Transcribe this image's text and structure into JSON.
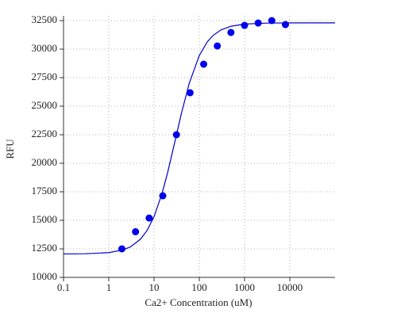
{
  "chart_data": {
    "type": "scatter",
    "x_label": "Ca2+ Concentration (uM)",
    "y_label": "RFU",
    "xscale": "log",
    "grid": true,
    "xlim": [
      0.1,
      100000
    ],
    "xticks": [
      0.1,
      1,
      10,
      100,
      1000,
      10000
    ],
    "ylim": [
      10000,
      32500
    ],
    "yticks": [
      10000,
      12500,
      15000,
      17500,
      20000,
      22500,
      25000,
      27500,
      30000,
      32500
    ],
    "series": [
      {
        "kind": "points",
        "color": "#0000ee",
        "x": [
          1.95,
          3.9,
          7.8,
          15.6,
          31.25,
          62.5,
          125,
          250,
          500,
          1000,
          2000,
          4000,
          8000
        ],
        "values": [
          12500,
          14000,
          15200,
          17150,
          22500,
          26180,
          28680,
          30280,
          31460,
          32080,
          32290,
          32500,
          32150
        ]
      },
      {
        "kind": "line",
        "color": "#0000cc",
        "x": [
          0.1,
          0.3,
          1,
          2,
          3,
          5,
          7,
          10,
          15,
          20,
          30,
          40,
          60,
          100,
          150,
          200,
          300,
          500,
          1000,
          3000,
          10000,
          100000
        ],
        "values": [
          12054,
          12070,
          12172,
          12393,
          12671,
          13340,
          14101,
          15318,
          17340,
          19188,
          22175,
          24327,
          27011,
          29442,
          30638,
          31188,
          31680,
          32007,
          32195,
          32280,
          32298,
          32300
        ]
      }
    ]
  }
}
